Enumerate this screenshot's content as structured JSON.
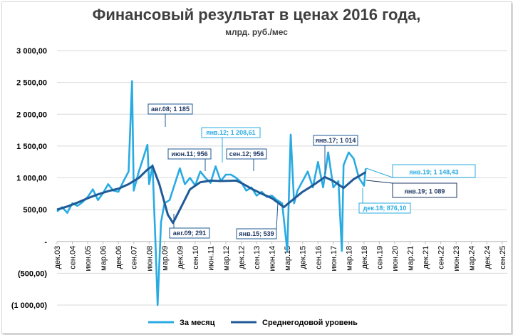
{
  "title": "Финансовый результат в ценах 2016 года,",
  "subtitle": "млрд. руб./мес",
  "colors": {
    "monthly": "#29abe2",
    "average": "#1f5a96",
    "grid": "#d9d9d9"
  },
  "chart_data": {
    "type": "line",
    "title": "Финансовый результат в ценах 2016 года,",
    "subtitle": "млрд. руб./мес",
    "ylim": [
      -1000,
      3000
    ],
    "yticks": [
      -1000,
      -500,
      0,
      500,
      1000,
      1500,
      2000,
      2500,
      3000
    ],
    "ytick_labels": [
      "(1 000,00)",
      "(500,00)",
      "-",
      "500,00",
      "1 000,00",
      "1 500,00",
      "2 000,00",
      "2 500,00",
      "3 000,00"
    ],
    "x_start": "дек.03",
    "x_end": "дек.25",
    "xtick_labels": [
      "дек.03",
      "сен.04",
      "июн.05",
      "мар.06",
      "дек.06",
      "сен.07",
      "июн.08",
      "мар.09",
      "дек.09",
      "сен.10",
      "июн.11",
      "мар.12",
      "дек.12",
      "сен.13",
      "июн.14",
      "мар.15",
      "дек.15",
      "сен.16",
      "июн.17",
      "мар.18",
      "дек.18",
      "сен.19",
      "июн.20",
      "мар.21",
      "дек.21",
      "сен.22",
      "июн.23",
      "мар.24",
      "дек.24",
      "сен.25"
    ],
    "grid": true,
    "legend_position": "bottom",
    "series": [
      {
        "name": "За месяц",
        "color": "#29abe2",
        "points": [
          [
            "дек.03",
            470
          ],
          [
            "мар.04",
            540
          ],
          [
            "июн.04",
            450
          ],
          [
            "сен.04",
            600
          ],
          [
            "дек.04",
            560
          ],
          [
            "мар.05",
            620
          ],
          [
            "июн.05",
            700
          ],
          [
            "сен.05",
            820
          ],
          [
            "дек.05",
            650
          ],
          [
            "мар.06",
            760
          ],
          [
            "июн.06",
            900
          ],
          [
            "сен.06",
            800
          ],
          [
            "дек.06",
            780
          ],
          [
            "мар.07",
            950
          ],
          [
            "июн.07",
            1100
          ],
          [
            "авг.07",
            2520
          ],
          [
            "сен.07",
            800
          ],
          [
            "дек.07",
            1100
          ],
          [
            "мар.08",
            1350
          ],
          [
            "май.08",
            1520
          ],
          [
            "июн.08",
            900
          ],
          [
            "авг.08",
            1200
          ],
          [
            "окт.08",
            -200
          ],
          [
            "ноя.08",
            -1000
          ],
          [
            "янв.09",
            300
          ],
          [
            "мар.09",
            600
          ],
          [
            "июн.09",
            650
          ],
          [
            "сен.09",
            900
          ],
          [
            "дек.09",
            1150
          ],
          [
            "мар.10",
            900
          ],
          [
            "июн.10",
            1000
          ],
          [
            "сен.10",
            880
          ],
          [
            "дек.10",
            1100
          ],
          [
            "мар.11",
            1000
          ],
          [
            "июн.11",
            920
          ],
          [
            "сен.11",
            1180
          ],
          [
            "дек.11",
            950
          ],
          [
            "мар.12",
            1050
          ],
          [
            "июн.12",
            1050
          ],
          [
            "сен.12",
            1000
          ],
          [
            "дек.12",
            930
          ],
          [
            "мар.13",
            800
          ],
          [
            "июн.13",
            850
          ],
          [
            "сен.13",
            720
          ],
          [
            "дек.13",
            780
          ],
          [
            "мар.14",
            700
          ],
          [
            "июн.14",
            720
          ],
          [
            "сен.14",
            650
          ],
          [
            "дек.14",
            600
          ],
          [
            "мар.15",
            -150
          ],
          [
            "май.15",
            1680
          ],
          [
            "июл.15",
            600
          ],
          [
            "сен.15",
            800
          ],
          [
            "дек.15",
            950
          ],
          [
            "мар.16",
            1100
          ],
          [
            "июн.16",
            850
          ],
          [
            "сен.16",
            1250
          ],
          [
            "дек.16",
            850
          ],
          [
            "мар.17",
            1400
          ],
          [
            "июн.17",
            850
          ],
          [
            "сен.17",
            950
          ],
          [
            "ноя.17",
            -150
          ],
          [
            "дек.17",
            1200
          ],
          [
            "мар.18",
            1400
          ],
          [
            "июн.18",
            1300
          ],
          [
            "сен.18",
            1000
          ],
          [
            "дек.18",
            876
          ],
          [
            "янв.19",
            1148
          ]
        ]
      },
      {
        "name": "Среднегодовой уровень",
        "color": "#1f5a96",
        "points": [
          [
            "дек.03",
            500
          ],
          [
            "июн.04",
            550
          ],
          [
            "дек.04",
            610
          ],
          [
            "июн.05",
            680
          ],
          [
            "дек.05",
            740
          ],
          [
            "июн.06",
            790
          ],
          [
            "дек.06",
            830
          ],
          [
            "июн.07",
            900
          ],
          [
            "дек.07",
            1000
          ],
          [
            "май.08",
            1130
          ],
          [
            "авг.08",
            1185
          ],
          [
            "дек.08",
            900
          ],
          [
            "май.09",
            420
          ],
          [
            "авг.09",
            291
          ],
          [
            "дек.09",
            500
          ],
          [
            "июн.10",
            820
          ],
          [
            "дек.10",
            930
          ],
          [
            "июн.11",
            956
          ],
          [
            "дек.11",
            950
          ],
          [
            "сен.12",
            956
          ],
          [
            "дек.12",
            920
          ],
          [
            "июн.13",
            830
          ],
          [
            "дек.13",
            750
          ],
          [
            "июн.14",
            680
          ],
          [
            "янв.15",
            539
          ],
          [
            "июн.15",
            650
          ],
          [
            "дек.15",
            780
          ],
          [
            "июн.16",
            880
          ],
          [
            "янв.17",
            1014
          ],
          [
            "июн.17",
            950
          ],
          [
            "дек.17",
            840
          ],
          [
            "июн.18",
            980
          ],
          [
            "янв.19",
            1089
          ]
        ]
      }
    ],
    "annotations": [
      {
        "text": "авг.08; 1 185",
        "series": "Среднегодовой уровень"
      },
      {
        "text": "авг.09; 291",
        "series": "Среднегодовой уровень"
      },
      {
        "text": "июн.11; 956",
        "series": "Среднегодовой уровень"
      },
      {
        "text": "янв.12;  1 208,61",
        "series": "За месяц"
      },
      {
        "text": "сен.12; 956",
        "series": "Среднегодовой уровень"
      },
      {
        "text": "янв.15; 539",
        "series": "Среднегодовой уровень"
      },
      {
        "text": "янв.17; 1 014",
        "series": "Среднегодовой уровень"
      },
      {
        "text": "янв.19;  1 148,43",
        "series": "За месяц"
      },
      {
        "text": "янв.19; 1 089",
        "series": "Среднегодовой уровень"
      },
      {
        "text": "дек.18;  876,10",
        "series": "За месяц"
      }
    ]
  },
  "legend": {
    "monthly_label": "За месяц",
    "average_label": "Среднегодовой уровень"
  }
}
